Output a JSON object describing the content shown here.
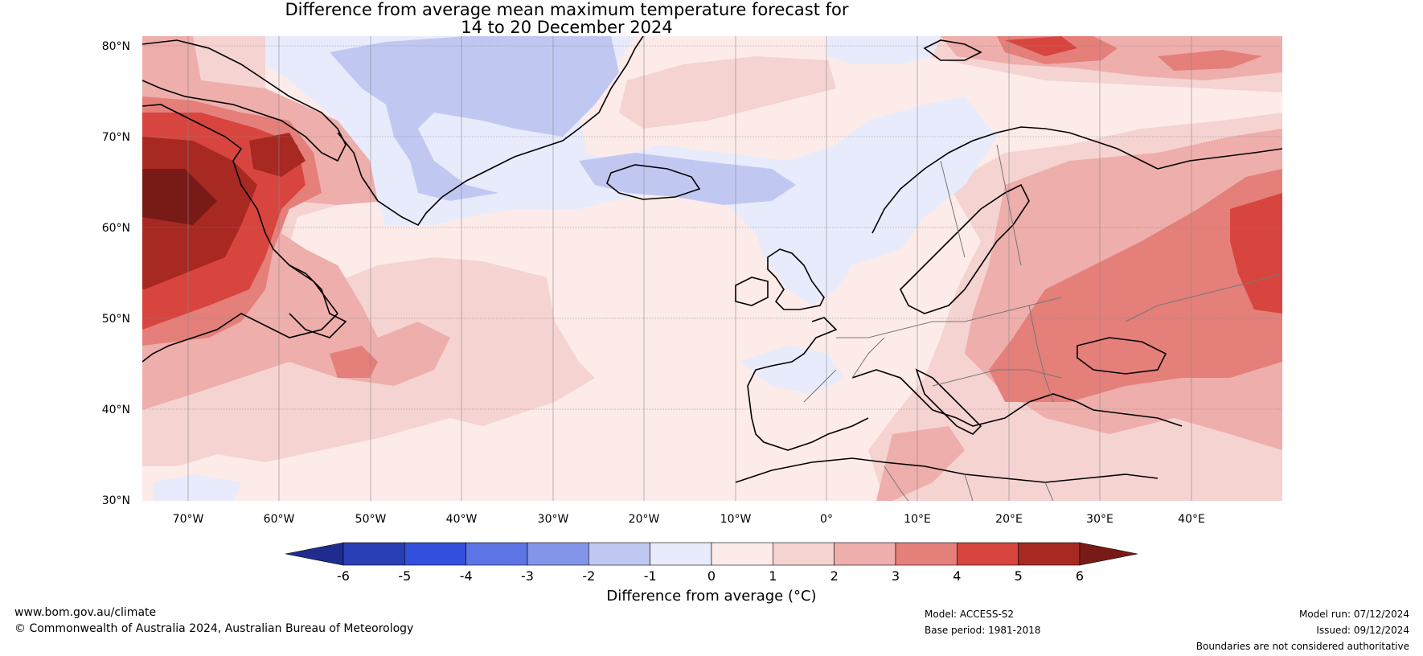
{
  "title_line1": "Difference from average mean maximum temperature forecast for",
  "title_line2": "14 to 20 December 2024",
  "lat_labels": [
    "80°N",
    "70°N",
    "60°N",
    "50°N",
    "40°N",
    "30°N"
  ],
  "lon_labels": [
    "70°W",
    "60°W",
    "50°W",
    "40°W",
    "30°W",
    "20°W",
    "10°W",
    "0°",
    "10°E",
    "20°E",
    "30°E",
    "40°E"
  ],
  "colorbar": {
    "label": "Difference from average (°C)",
    "ticks": [
      "-6",
      "-5",
      "-4",
      "-3",
      "-2",
      "-1",
      "0",
      "1",
      "2",
      "3",
      "4",
      "5",
      "6"
    ],
    "colors": [
      "#1f2b8f",
      "#2a3fb5",
      "#3350dc",
      "#5c74e4",
      "#8395e8",
      "#c0c8f2",
      "#e8ebfb",
      "#fcebe9",
      "#f5d3d1",
      "#eeaeab",
      "#e47f7a",
      "#d8453e",
      "#a82822",
      "#781b17"
    ]
  },
  "footer": {
    "url": "www.bom.gov.au/climate",
    "copyright": "© Commonwealth of Australia 2024, Australian Bureau of Meteorology",
    "model": "Model: ACCESS-S2",
    "base_period": "Base period: 1981-2018",
    "model_run": "Model run: 07/12/2024",
    "issued": "Issued: 09/12/2024",
    "disclaimer": "Boundaries are not considered authoritative"
  }
}
